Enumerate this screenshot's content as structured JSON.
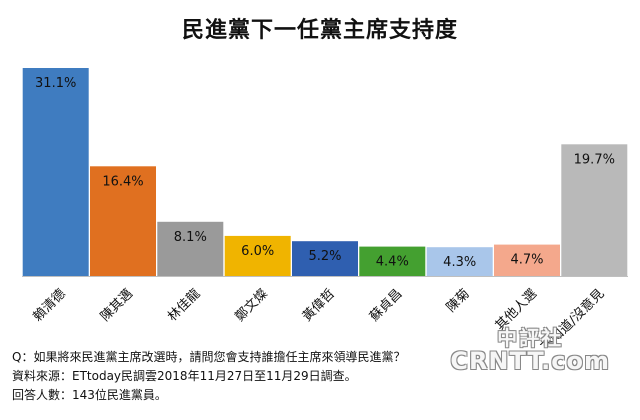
{
  "chart_data": {
    "type": "bar",
    "title": "民進黨下一任黨主席支持度",
    "categories": [
      "賴清德",
      "陳其邁",
      "林佳龍",
      "鄭文燦",
      "黃偉哲",
      "蘇貞昌",
      "陳菊",
      "其他人選",
      "不知道/沒意見"
    ],
    "values": [
      31.1,
      16.4,
      8.1,
      6.0,
      5.2,
      4.4,
      4.3,
      4.7,
      19.7
    ],
    "value_labels": [
      "31.1%",
      "16.4%",
      "8.1%",
      "6.0%",
      "5.2%",
      "4.4%",
      "4.3%",
      "4.7%",
      "19.7%"
    ],
    "colors": [
      "#3f7cc0",
      "#e07020",
      "#9a9a9a",
      "#f0b400",
      "#2f5fb0",
      "#44a030",
      "#a9c6ea",
      "#f4a88c",
      "#b9b9b9"
    ],
    "ylim": [
      0,
      32
    ],
    "grid": false,
    "xlabel": "",
    "ylabel": ""
  },
  "notes": {
    "question": "Q：如果將來民進黨主席改選時，請問您會支持誰擔任主席來領導民進黨？",
    "source": "資料來源：ETtoday民調雲2018年11月27日至11月29日調查。",
    "respondents": "回答人數：143位民進黨員。"
  },
  "watermark": {
    "top": "中評社",
    "bottom": "CRNTT.com"
  }
}
